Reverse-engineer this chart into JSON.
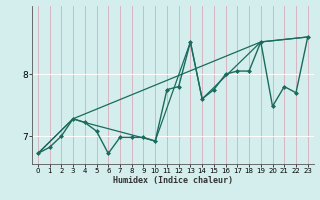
{
  "title": "",
  "xlabel": "Humidex (Indice chaleur)",
  "xlim": [
    -0.5,
    23.5
  ],
  "ylim": [
    6.55,
    9.1
  ],
  "yticks": [
    7,
    8
  ],
  "xticks": [
    0,
    1,
    2,
    3,
    4,
    5,
    6,
    7,
    8,
    9,
    10,
    11,
    12,
    13,
    14,
    15,
    16,
    17,
    18,
    19,
    20,
    21,
    22,
    23
  ],
  "bg_color": "#d4eeed",
  "line_color": "#1a6b5e",
  "grid_color": "#c0dedd",
  "vgrid_color": "#c8b8c8",
  "line0": {
    "x": [
      0,
      1,
      2,
      3,
      4,
      5,
      6,
      7,
      8,
      9,
      10,
      11,
      12,
      13,
      14,
      15,
      16,
      17,
      18,
      19,
      20,
      21,
      22,
      23
    ],
    "y": [
      6.72,
      6.82,
      7.0,
      7.28,
      7.22,
      7.08,
      6.72,
      6.98,
      6.98,
      6.98,
      6.92,
      7.75,
      7.8,
      8.52,
      7.6,
      7.75,
      8.0,
      8.05,
      8.05,
      8.52,
      7.48,
      7.8,
      7.7,
      8.6
    ],
    "marker": "D",
    "markersize": 2.0,
    "linewidth": 1.0
  },
  "line1": {
    "x": [
      0,
      3,
      4,
      10,
      13,
      14,
      19,
      23
    ],
    "y": [
      6.72,
      7.28,
      7.22,
      6.92,
      8.52,
      7.6,
      8.52,
      8.6
    ],
    "linewidth": 0.9
  },
  "line2": {
    "x": [
      0,
      3,
      19,
      23
    ],
    "y": [
      6.72,
      7.28,
      8.52,
      8.6
    ],
    "linewidth": 0.9
  }
}
